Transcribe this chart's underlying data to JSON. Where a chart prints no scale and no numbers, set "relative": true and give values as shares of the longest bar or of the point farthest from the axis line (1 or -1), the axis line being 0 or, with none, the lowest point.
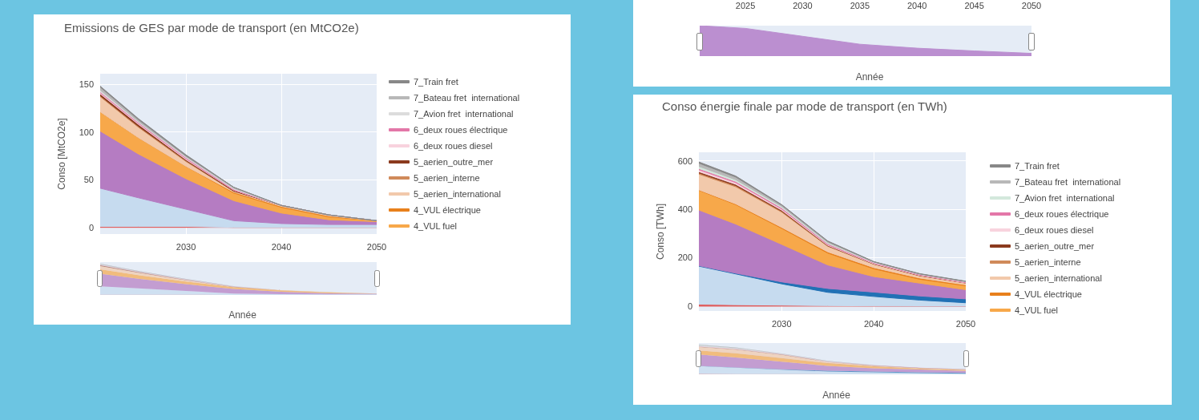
{
  "chart_data": [
    {
      "type": "area",
      "title": "Emissions de GES par mode de transport (en MtCO2e)",
      "xlabel": "Année",
      "ylabel": "Conso [MtCO2e]",
      "x": [
        2021,
        2025,
        2030,
        2035,
        2040,
        2045,
        2050
      ],
      "xlim": [
        2021,
        2050
      ],
      "xticks": [
        2030,
        2040,
        2050
      ],
      "ylim": [
        -7,
        161
      ],
      "yticks": [
        0,
        50,
        100,
        150
      ],
      "stacked": true,
      "grid": true,
      "legend": "right",
      "series": [
        {
          "color": "#e05a5a",
          "values": [
            1,
            1,
            1,
            0,
            0,
            0,
            0
          ]
        },
        {
          "color": "#c6dbef",
          "values": [
            40,
            30,
            18,
            7,
            4,
            3,
            3
          ]
        },
        {
          "color": "#b57cc2",
          "values": [
            60,
            46,
            32,
            21,
            11,
            5,
            3
          ]
        },
        {
          "name": "4_VUL fuel",
          "color": "#f7a84a",
          "values": [
            20,
            17,
            13,
            8,
            6,
            3,
            1
          ]
        },
        {
          "name": "4_VUL électrique",
          "color": "#e8801c",
          "values": [
            0,
            0,
            0,
            1,
            1,
            1,
            0
          ]
        },
        {
          "name": "5_aerien_international",
          "color": "#f2c9ab",
          "values": [
            16,
            11,
            5,
            1,
            1,
            1,
            0
          ]
        },
        {
          "name": "5_aerien_interne",
          "color": "#d08a5a",
          "values": [
            1,
            1,
            1,
            0,
            0,
            0,
            0
          ]
        },
        {
          "name": "5_aerien_outre_mer",
          "color": "#8b3a1e",
          "values": [
            2,
            2,
            1,
            1,
            0,
            0,
            0
          ]
        },
        {
          "name": "6_deux roues diesel",
          "color": "#f8d3de",
          "values": [
            1,
            1,
            1,
            0,
            0,
            0,
            0
          ]
        },
        {
          "name": "6_deux roues électrique",
          "color": "#e377a8",
          "values": [
            1,
            1,
            1,
            1,
            0,
            0,
            0
          ]
        },
        {
          "name": "7_Avion fret  international",
          "color": "#dcdcdc",
          "values": [
            2,
            1,
            1,
            1,
            0,
            0,
            0
          ]
        },
        {
          "name": "7_Bateau fret  international",
          "color": "#b8b8b8",
          "values": [
            3,
            2,
            1,
            1,
            0,
            0,
            0
          ]
        },
        {
          "name": "7_Train fret",
          "color": "#888888",
          "values": [
            1,
            1,
            1,
            0,
            0,
            0,
            0
          ]
        }
      ]
    },
    {
      "type": "area",
      "xlabel": "Année",
      "x": [
        2021,
        2025,
        2030,
        2035,
        2040,
        2045,
        2050
      ],
      "xlim": [
        2021,
        2050
      ],
      "xticks": [
        2025,
        2030,
        2035,
        2040,
        2045,
        2050
      ],
      "relative": true,
      "tick_labels": "x",
      "series": [
        {
          "color": "#bb8fd0",
          "values": [
            1,
            0.91,
            0.65,
            0.39,
            0.26,
            0.17,
            0.09
          ]
        }
      ]
    },
    {
      "type": "area",
      "title": "Conso énergie finale par mode de transport (en TWh)",
      "xlabel": "Année",
      "ylabel": "Conso [TWh]",
      "x": [
        2021,
        2025,
        2030,
        2035,
        2040,
        2045,
        2050
      ],
      "xlim": [
        2021,
        2050
      ],
      "xticks": [
        2030,
        2040,
        2050
      ],
      "ylim": [
        -20,
        635
      ],
      "yticks": [
        0,
        200,
        400,
        600
      ],
      "stacked": true,
      "grid": true,
      "legend": "right",
      "series": [
        {
          "color": "#e05a5a",
          "values": [
            8,
            6,
            4,
            2,
            1,
            0,
            0
          ]
        },
        {
          "color": "#c6dbef",
          "values": [
            157,
            127,
            88,
            55,
            39,
            25,
            14
          ]
        },
        {
          "color": "#2171b5",
          "values": [
            2,
            3,
            8,
            16,
            18,
            17,
            16
          ]
        },
        {
          "color": "#b57cc2",
          "values": [
            230,
            203,
            155,
            97,
            64,
            53,
            38
          ]
        },
        {
          "name": "4_VUL fuel",
          "color": "#f7a84a",
          "values": [
            81,
            80,
            66,
            49,
            32,
            16,
            16
          ]
        },
        {
          "name": "4_VUL électrique",
          "color": "#e8801c",
          "values": [
            2,
            3,
            4,
            5,
            5,
            5,
            4
          ]
        },
        {
          "name": "5_aerien_international",
          "color": "#f2c9ab",
          "values": [
            65,
            71,
            63,
            23,
            14,
            9,
            7
          ]
        },
        {
          "name": "5_aerien_interne",
          "color": "#d08a5a",
          "values": [
            5,
            5,
            4,
            2,
            1,
            1,
            1
          ]
        },
        {
          "name": "5_aerien_outre_mer",
          "color": "#8b3a1e",
          "values": [
            5,
            5,
            4,
            2,
            1,
            1,
            0
          ]
        },
        {
          "name": "6_deux roues diesel",
          "color": "#f8d3de",
          "values": [
            8,
            7,
            5,
            3,
            2,
            1,
            1
          ]
        },
        {
          "name": "6_deux roues électrique",
          "color": "#e377a8",
          "values": [
            5,
            5,
            5,
            4,
            3,
            3,
            3
          ]
        },
        {
          "name": "7_Avion fret  international",
          "color": "#d3e8dc",
          "values": [
            9,
            7,
            5,
            4,
            2,
            1,
            1
          ]
        },
        {
          "name": "7_Bateau fret  international",
          "color": "#b8b8b8",
          "values": [
            13,
            11,
            6,
            5,
            1,
            1,
            1
          ]
        },
        {
          "name": "7_Train fret",
          "color": "#888888",
          "values": [
            5,
            4,
            2,
            2,
            1,
            1,
            1
          ]
        }
      ]
    }
  ]
}
